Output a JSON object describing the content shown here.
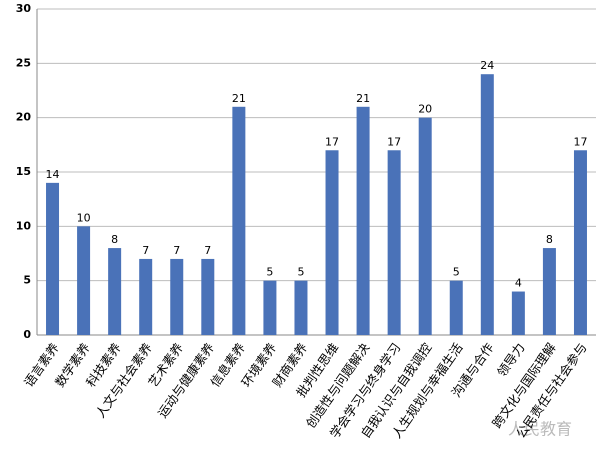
{
  "chart_data": {
    "type": "bar",
    "categories": [
      "语言素养",
      "数学素养",
      "科技素养",
      "人文与社会素养",
      "艺术素养",
      "运动与健康素养",
      "信息素养",
      "环境素养",
      "财商素养",
      "批判性思维",
      "创造性与问题解决",
      "学会学习与终身学习",
      "自我认识与自我调控",
      "人生规划与幸福生活",
      "沟通与合作",
      "领导力",
      "跨文化与国际理解",
      "公民责任与社会参与"
    ],
    "values": [
      14,
      10,
      8,
      7,
      7,
      7,
      21,
      5,
      5,
      17,
      21,
      17,
      20,
      5,
      24,
      4,
      8,
      17
    ],
    "color": "#4a72b8",
    "ylim": [
      0,
      30
    ],
    "yticks": [
      0,
      5,
      10,
      15,
      20,
      25,
      30
    ],
    "grid": true,
    "watermark": "人民教育"
  }
}
